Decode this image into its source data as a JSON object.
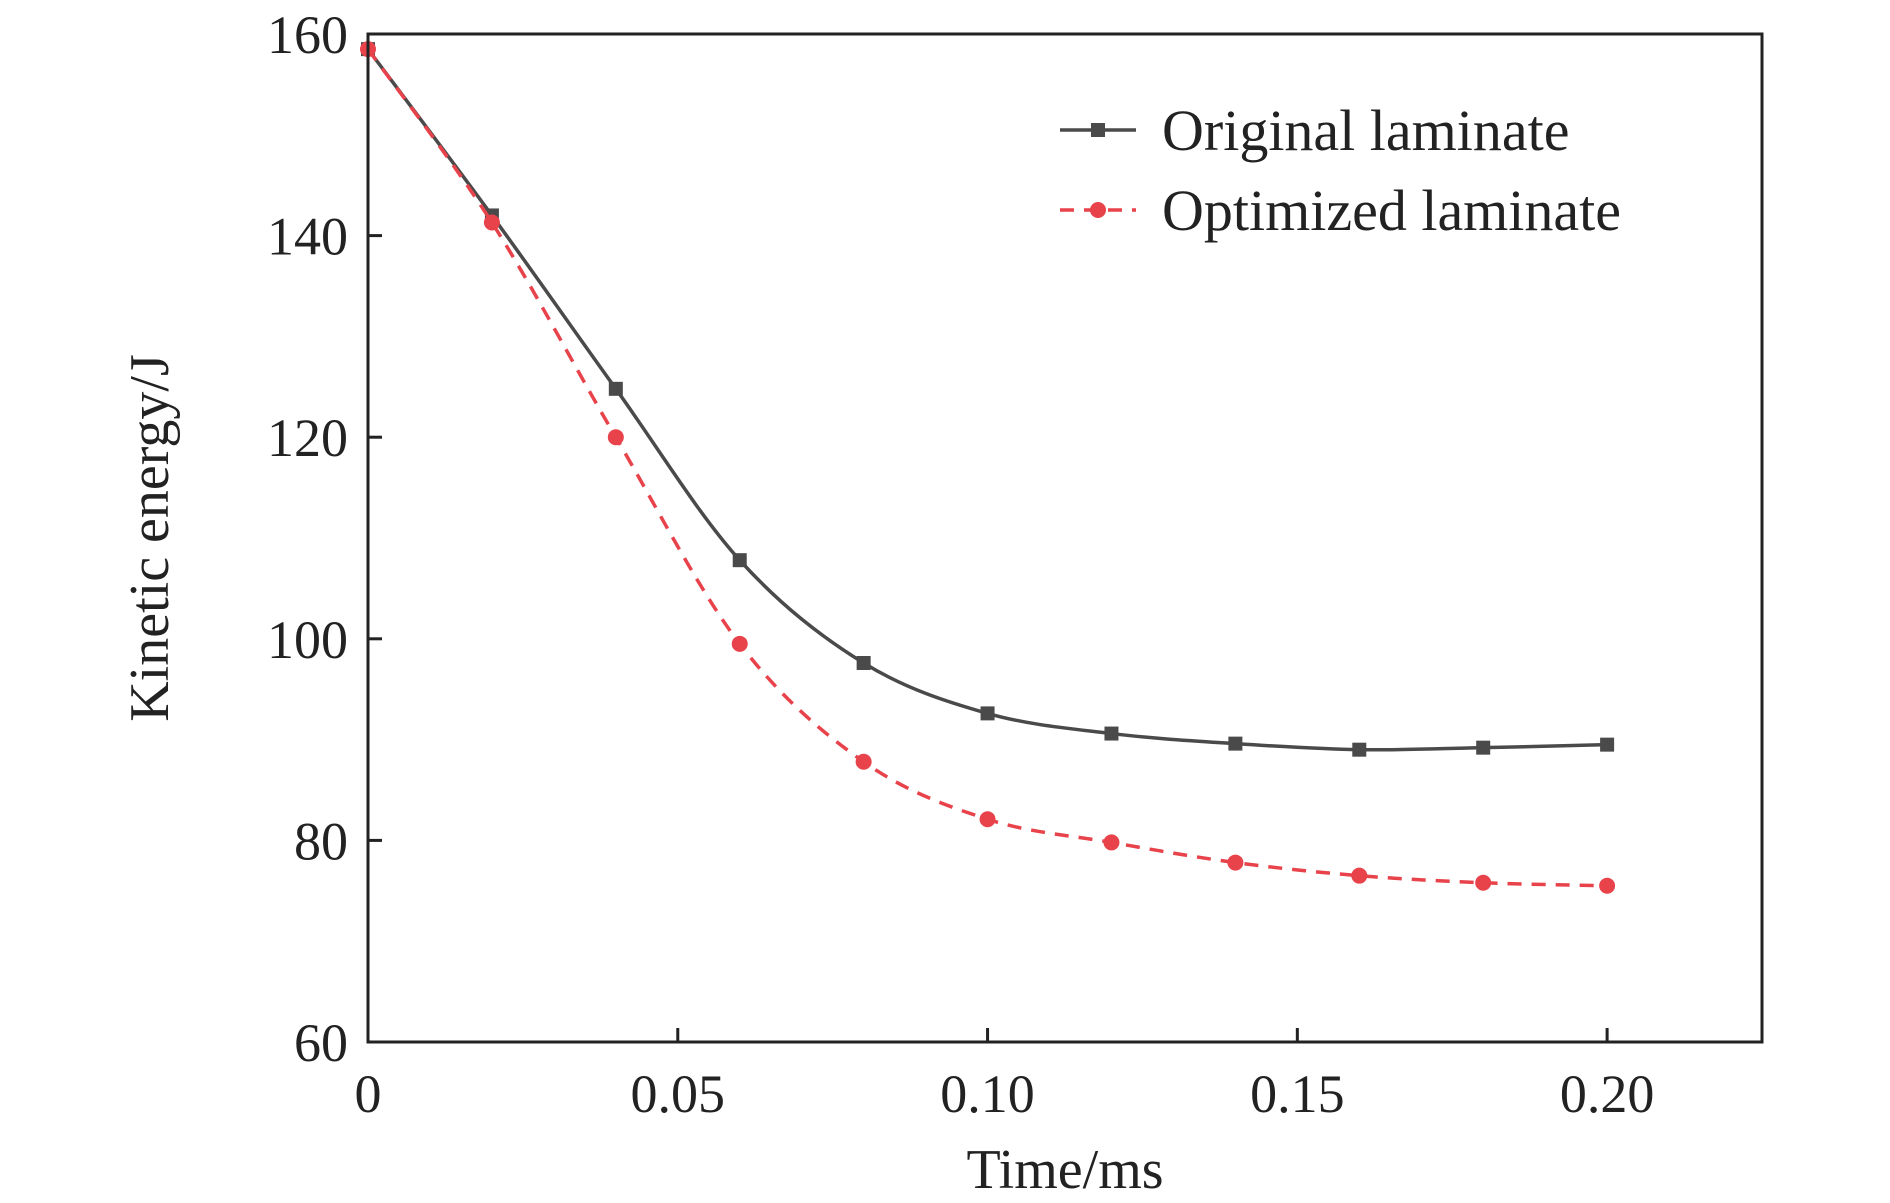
{
  "chart_data": {
    "type": "line",
    "title": "",
    "xlabel": "Time/ms",
    "ylabel": "Kinetic energy/J",
    "xlim": [
      0,
      0.225
    ],
    "ylim": [
      60,
      160
    ],
    "x_ticks": [
      {
        "value": 0,
        "label": "0"
      },
      {
        "value": 0.05,
        "label": "0.05"
      },
      {
        "value": 0.1,
        "label": "0.10"
      },
      {
        "value": 0.15,
        "label": "0.15"
      },
      {
        "value": 0.2,
        "label": "0.20"
      }
    ],
    "y_ticks": [
      {
        "value": 60,
        "label": "60"
      },
      {
        "value": 80,
        "label": "80"
      },
      {
        "value": 100,
        "label": "100"
      },
      {
        "value": 120,
        "label": "120"
      },
      {
        "value": 140,
        "label": "140"
      },
      {
        "value": 160,
        "label": "160"
      }
    ],
    "grid": false,
    "legend_position": "top-right",
    "x": [
      0,
      0.02,
      0.04,
      0.06,
      0.08,
      0.1,
      0.12,
      0.14,
      0.16,
      0.18,
      0.2
    ],
    "series": [
      {
        "name": "Original laminate",
        "color": "#4a4a4a",
        "line_style": "solid",
        "marker": "square",
        "values": [
          158.5,
          142.0,
          124.8,
          107.8,
          97.6,
          92.6,
          90.6,
          89.6,
          89.0,
          89.2,
          89.5
        ]
      },
      {
        "name": "Optimized laminate",
        "color": "#e8424b",
        "line_style": "dashed",
        "marker": "circle",
        "values": [
          158.5,
          141.3,
          120.0,
          99.5,
          87.8,
          82.1,
          79.8,
          77.8,
          76.5,
          75.8,
          75.5
        ]
      }
    ]
  }
}
